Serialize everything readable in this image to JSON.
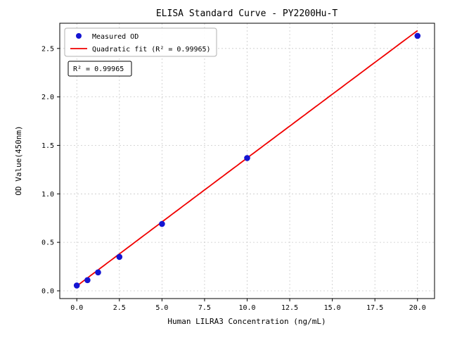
{
  "chart_data": {
    "type": "scatter",
    "title": "ELISA Standard Curve - PY2200Hu-T",
    "xlabel": "Human LILRA3 Concentration (ng/mL)",
    "ylabel": "OD Value(450nm)",
    "x": [
      0,
      0.625,
      1.25,
      2.5,
      5,
      10,
      20
    ],
    "y": [
      0.055,
      0.11,
      0.19,
      0.35,
      0.69,
      1.37,
      2.63
    ],
    "series_name": "Measured OD",
    "fit": {
      "type": "quadratic",
      "a": 0.05,
      "b": 0.1323,
      "c": -3e-05,
      "r_squared": 0.99965
    },
    "fit_range": [
      0,
      20
    ],
    "xlim": [
      -1,
      21
    ],
    "ylim": [
      -0.08,
      2.76
    ],
    "x_ticks": [
      0,
      2.5,
      5,
      7.5,
      10,
      12.5,
      15,
      17.5,
      20
    ],
    "x_tick_labels": [
      "0.0",
      "2.5",
      "5.0",
      "7.5",
      "10.0",
      "12.5",
      "15.0",
      "17.5",
      "20.0"
    ],
    "y_ticks": [
      0,
      0.5,
      1.0,
      1.5,
      2.0,
      2.5
    ],
    "y_tick_labels": [
      "0.0",
      "0.5",
      "1.0",
      "1.5",
      "2.0",
      "2.5"
    ],
    "legend": [
      "Measured OD",
      "Quadratic fit (R² = 0.99965)"
    ],
    "legend_position": "upper left",
    "annotation": "R² = 0.99965",
    "grid": true,
    "colors": {
      "points": "#1414d2",
      "fit_line": "#f00000"
    }
  }
}
